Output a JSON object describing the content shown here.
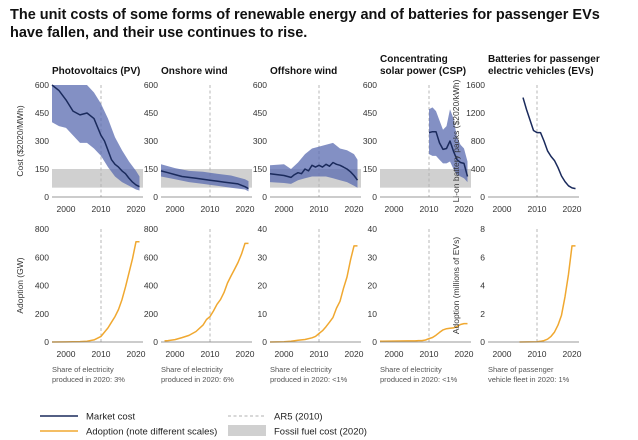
{
  "title": "The unit costs of some forms of renewable energy and of batteries for passenger EVs have fallen, and their use continues to rise.",
  "colors": {
    "market": "#1a2a5c",
    "band": "#5a6bb0",
    "adoption": "#f0a830",
    "fossil": "#d0d0d0",
    "ar5": "#b0b0b0"
  },
  "legend": {
    "market": "Market cost",
    "adoption": "Adoption (note different scales)",
    "ar5": "AR5 (2010)",
    "fossil": "Fossil fuel cost (2020)"
  },
  "chart_data": [
    {
      "type": "line",
      "title": "Photovoltaics (PV)",
      "ylabel": "Cost ($2020/MWh)",
      "ylim": [
        0,
        600
      ],
      "yticks": [
        0,
        150,
        300,
        450,
        600
      ],
      "xlim": [
        1996,
        2022
      ],
      "xticks": [
        2000,
        2010,
        2020
      ],
      "fossil_band": [
        50,
        150
      ],
      "series": [
        {
          "name": "Market cost",
          "x": [
            1996,
            1998,
            2000,
            2002,
            2004,
            2006,
            2008,
            2010,
            2011,
            2012,
            2013,
            2014,
            2015,
            2016,
            2017,
            2018,
            2019,
            2020,
            2021
          ],
          "y": [
            600,
            570,
            520,
            460,
            440,
            450,
            420,
            330,
            300,
            250,
            200,
            175,
            160,
            140,
            125,
            100,
            80,
            65,
            55
          ]
        }
      ],
      "range": {
        "x": [
          1996,
          1998,
          2000,
          2002,
          2004,
          2006,
          2008,
          2010,
          2012,
          2014,
          2016,
          2018,
          2020,
          2021
        ],
        "lo": [
          400,
          380,
          370,
          330,
          290,
          290,
          260,
          220,
          160,
          110,
          80,
          60,
          40,
          35
        ],
        "hi": [
          600,
          600,
          600,
          600,
          600,
          600,
          560,
          500,
          420,
          320,
          250,
          190,
          140,
          110
        ]
      }
    },
    {
      "type": "line",
      "title": "Onshore wind",
      "ylim": [
        0,
        600
      ],
      "yticks": [
        0,
        150,
        300,
        450,
        600
      ],
      "xlim": [
        1996,
        2022
      ],
      "xticks": [
        2000,
        2010,
        2020
      ],
      "fossil_band": [
        50,
        150
      ],
      "series": [
        {
          "name": "Market cost",
          "x": [
            1996,
            1998,
            2000,
            2002,
            2004,
            2006,
            2008,
            2010,
            2012,
            2014,
            2016,
            2018,
            2020,
            2021
          ],
          "y": [
            140,
            130,
            120,
            110,
            105,
            100,
            95,
            90,
            85,
            80,
            75,
            70,
            55,
            45
          ]
        }
      ],
      "range": {
        "x": [
          1996,
          2000,
          2004,
          2008,
          2012,
          2016,
          2020,
          2021
        ],
        "lo": [
          110,
          95,
          80,
          70,
          60,
          50,
          40,
          30
        ],
        "hi": [
          175,
          155,
          140,
          135,
          125,
          115,
          95,
          85
        ]
      }
    },
    {
      "type": "line",
      "title": "Offshore wind",
      "ylim": [
        0,
        600
      ],
      "yticks": [
        0,
        150,
        300,
        450,
        600
      ],
      "xlim": [
        1996,
        2022
      ],
      "xticks": [
        2000,
        2010,
        2020
      ],
      "fossil_band": [
        50,
        150
      ],
      "series": [
        {
          "name": "Market cost",
          "x": [
            1996,
            1998,
            2000,
            2002,
            2003,
            2004,
            2005,
            2006,
            2007,
            2008,
            2009,
            2010,
            2011,
            2012,
            2013,
            2014,
            2015,
            2016,
            2017,
            2018,
            2019,
            2020,
            2021
          ],
          "y": [
            125,
            120,
            115,
            105,
            120,
            130,
            125,
            150,
            140,
            170,
            160,
            170,
            160,
            175,
            165,
            185,
            175,
            170,
            160,
            150,
            135,
            115,
            90
          ]
        }
      ],
      "range": {
        "x": [
          1996,
          2000,
          2002,
          2004,
          2006,
          2008,
          2010,
          2012,
          2014,
          2016,
          2018,
          2020,
          2021
        ],
        "lo": [
          80,
          75,
          70,
          90,
          100,
          110,
          110,
          110,
          100,
          90,
          80,
          60,
          50
        ],
        "hi": [
          170,
          175,
          150,
          185,
          230,
          260,
          270,
          280,
          290,
          260,
          250,
          230,
          200
        ]
      }
    },
    {
      "type": "line",
      "title": "Concentrating solar power (CSP)",
      "ylim": [
        0,
        600
      ],
      "yticks": [
        0,
        150,
        300,
        450,
        600
      ],
      "xlim": [
        1996,
        2022
      ],
      "xticks": [
        2000,
        2010,
        2020
      ],
      "fossil_band": [
        50,
        150
      ],
      "series": [
        {
          "name": "Market cost",
          "x": [
            2010,
            2011,
            2012,
            2013,
            2014,
            2015,
            2016,
            2017,
            2018,
            2019,
            2020,
            2021
          ],
          "y": [
            345,
            350,
            350,
            290,
            255,
            260,
            300,
            245,
            200,
            185,
            180,
            110
          ]
        }
      ],
      "range": {
        "x": [
          2010,
          2011,
          2012,
          2013,
          2014,
          2015,
          2016,
          2017,
          2018,
          2019,
          2020,
          2021
        ],
        "lo": [
          230,
          220,
          220,
          200,
          180,
          180,
          190,
          150,
          120,
          110,
          100,
          80
        ],
        "hi": [
          470,
          480,
          460,
          410,
          360,
          380,
          470,
          420,
          320,
          280,
          260,
          190
        ]
      }
    },
    {
      "type": "line",
      "title": "Batteries for passenger electric vehicles (EVs)",
      "ylabel": "Li-on battery packs ($2020/kWh)",
      "ylim": [
        0,
        1600
      ],
      "yticks": [
        0,
        400,
        800,
        1200,
        1600
      ],
      "xlim": [
        1996,
        2022
      ],
      "xticks": [
        2000,
        2010,
        2020
      ],
      "series": [
        {
          "name": "Market cost",
          "x": [
            2006,
            2007,
            2008,
            2009,
            2010,
            2011,
            2012,
            2013,
            2014,
            2015,
            2016,
            2017,
            2018,
            2019,
            2020,
            2021
          ],
          "y": [
            1420,
            1250,
            1100,
            950,
            920,
            920,
            800,
            660,
            580,
            520,
            420,
            300,
            220,
            160,
            130,
            120
          ]
        }
      ]
    },
    {
      "type": "line",
      "ylabel": "Adoption (GW)",
      "ylim": [
        0,
        800
      ],
      "yticks": [
        0,
        200,
        400,
        600,
        800
      ],
      "xlim": [
        1996,
        2022
      ],
      "xticks": [
        2000,
        2010,
        2020
      ],
      "footnote": [
        "Share of electricity",
        "produced in 2020: 3%"
      ],
      "series": [
        {
          "name": "Adoption",
          "x": [
            1996,
            2000,
            2004,
            2006,
            2008,
            2010,
            2011,
            2012,
            2013,
            2014,
            2015,
            2016,
            2017,
            2018,
            2019,
            2020,
            2021
          ],
          "y": [
            0,
            1,
            3,
            6,
            15,
            40,
            70,
            100,
            140,
            180,
            230,
            300,
            390,
            490,
            590,
            710,
            710
          ]
        }
      ]
    },
    {
      "type": "line",
      "ylim": [
        0,
        800
      ],
      "yticks": [
        0,
        200,
        400,
        600,
        800
      ],
      "xlim": [
        1996,
        2022
      ],
      "xticks": [
        2000,
        2010,
        2020
      ],
      "footnote": [
        "Share of electricity",
        "produced in 2020: 6%"
      ],
      "series": [
        {
          "name": "Adoption",
          "x": [
            1997,
            1998,
            2000,
            2002,
            2004,
            2006,
            2008,
            2009,
            2010,
            2011,
            2012,
            2013,
            2014,
            2015,
            2016,
            2017,
            2018,
            2019,
            2020,
            2021
          ],
          "y": [
            8,
            10,
            17,
            31,
            47,
            74,
            120,
            159,
            180,
            220,
            267,
            300,
            350,
            418,
            467,
            514,
            563,
            622,
            698,
            698
          ]
        }
      ]
    },
    {
      "type": "line",
      "ylim": [
        0,
        40
      ],
      "yticks": [
        0,
        10,
        20,
        30,
        40
      ],
      "xlim": [
        1996,
        2022
      ],
      "xticks": [
        2000,
        2010,
        2020
      ],
      "footnote": [
        "Share of electricity",
        "produced in 2020: <1%"
      ],
      "series": [
        {
          "name": "Adoption",
          "x": [
            1996,
            2000,
            2002,
            2004,
            2006,
            2008,
            2009,
            2010,
            2011,
            2012,
            2013,
            2014,
            2015,
            2016,
            2017,
            2018,
            2019,
            2020,
            2021
          ],
          "y": [
            0,
            0.1,
            0.3,
            0.6,
            0.9,
            1.5,
            2,
            3,
            4,
            5.4,
            7,
            8.7,
            12,
            14.4,
            19,
            23,
            29,
            34,
            34
          ]
        }
      ]
    },
    {
      "type": "line",
      "ylim": [
        0,
        40
      ],
      "yticks": [
        0,
        10,
        20,
        30,
        40
      ],
      "xlim": [
        1996,
        2022
      ],
      "xticks": [
        2000,
        2010,
        2020
      ],
      "footnote": [
        "Share of electricity",
        "produced in 2020: <1%"
      ],
      "series": [
        {
          "name": "Adoption",
          "x": [
            1996,
            2004,
            2006,
            2007,
            2008,
            2009,
            2010,
            2011,
            2012,
            2013,
            2014,
            2015,
            2016,
            2017,
            2018,
            2019,
            2020,
            2021
          ],
          "y": [
            0.3,
            0.4,
            0.4,
            0.5,
            0.5,
            0.7,
            1.2,
            1.6,
            2.4,
            3.4,
            4.3,
            4.7,
            4.9,
            5,
            5.5,
            6.2,
            6.5,
            6.5
          ]
        }
      ]
    },
    {
      "type": "line",
      "ylabel": "Adoption (millions of EVs)",
      "ylim": [
        0,
        8
      ],
      "yticks": [
        0,
        2,
        4,
        6,
        8
      ],
      "xlim": [
        1996,
        2022
      ],
      "xticks": [
        2000,
        2010,
        2020
      ],
      "footnote": [
        "Share of passenger",
        "vehicle fleet in 2020: 1%"
      ],
      "series": [
        {
          "name": "Adoption",
          "x": [
            2005,
            2010,
            2011,
            2012,
            2013,
            2014,
            2015,
            2016,
            2017,
            2018,
            2019,
            2020,
            2021
          ],
          "y": [
            0,
            0.02,
            0.05,
            0.1,
            0.2,
            0.4,
            0.7,
            1.2,
            1.9,
            3.2,
            4.8,
            6.8,
            6.8
          ]
        }
      ]
    }
  ]
}
